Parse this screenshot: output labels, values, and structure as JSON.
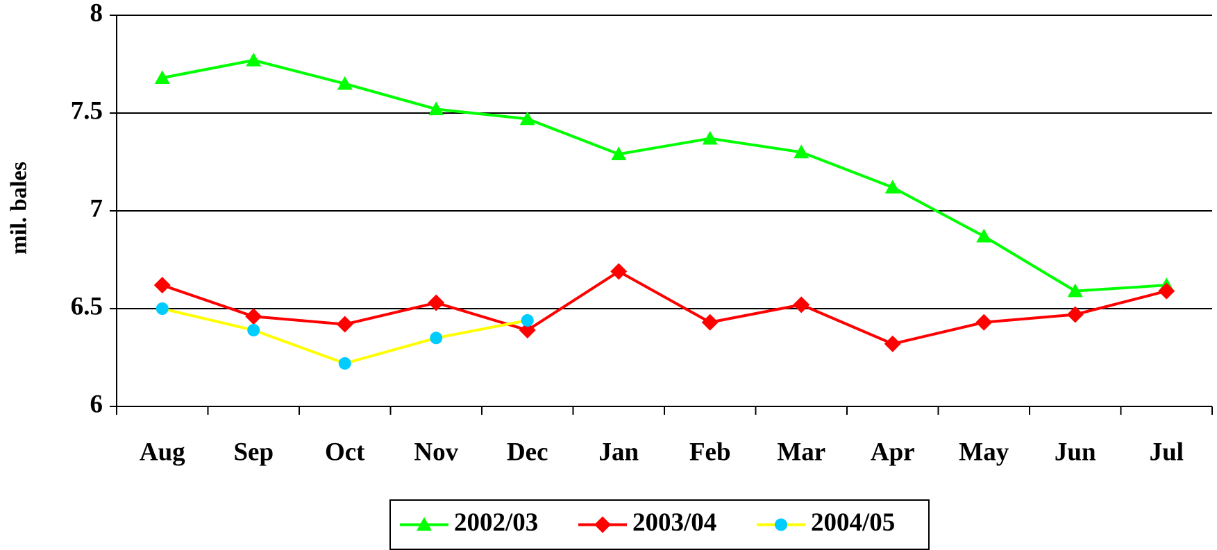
{
  "chart_data": {
    "type": "line",
    "y_label": "mil. bales",
    "categories": [
      "Aug",
      "Sep",
      "Oct",
      "Nov",
      "Dec",
      "Jan",
      "Feb",
      "Mar",
      "Apr",
      "May",
      "Jun",
      "Jul"
    ],
    "series": [
      {
        "name": "2002/03",
        "color": "#00ff00",
        "marker": "triangle",
        "marker_color": "#00ff00",
        "values": [
          7.68,
          7.77,
          7.65,
          7.52,
          7.47,
          7.29,
          7.37,
          7.3,
          7.12,
          6.87,
          6.59,
          6.62
        ]
      },
      {
        "name": "2003/04",
        "color": "#ff0000",
        "marker": "diamond",
        "marker_color": "#ff0000",
        "values": [
          6.62,
          6.46,
          6.42,
          6.53,
          6.39,
          6.69,
          6.43,
          6.52,
          6.32,
          6.43,
          6.47,
          6.59
        ]
      },
      {
        "name": "2004/05",
        "color": "#ffff00",
        "marker": "circle",
        "marker_color": "#00ccff",
        "values": [
          6.5,
          6.39,
          6.22,
          6.35,
          6.44,
          null,
          null,
          null,
          null,
          null,
          null,
          null
        ]
      }
    ],
    "ylim": [
      6,
      8
    ],
    "yticks": [
      6,
      6.5,
      7,
      7.5,
      8
    ],
    "grid": true,
    "legend": "bottom"
  }
}
